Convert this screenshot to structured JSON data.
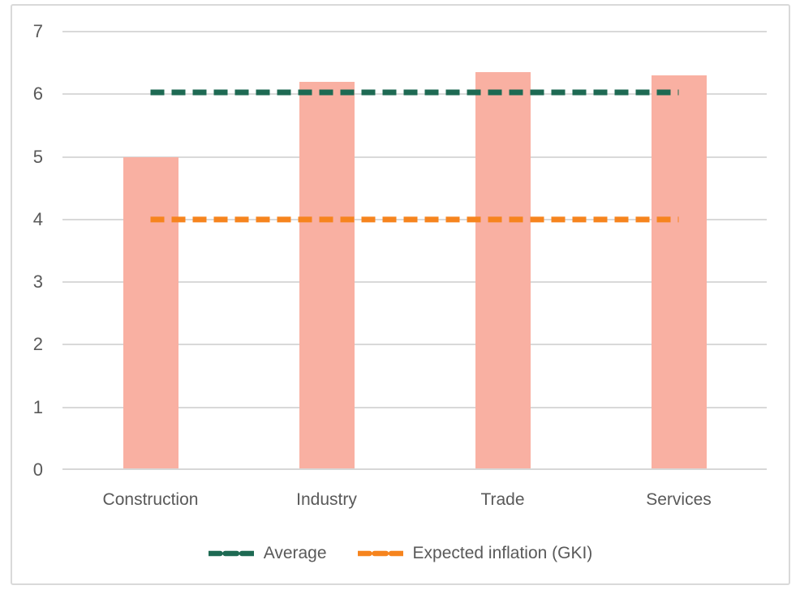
{
  "chart_data": {
    "type": "bar",
    "title": "",
    "categories": [
      "Construction",
      "Industry",
      "Trade",
      "Services"
    ],
    "series": [
      {
        "name": "",
        "type": "bar",
        "values": [
          5.0,
          6.2,
          6.35,
          6.3
        ],
        "color": "#F9B0A2"
      },
      {
        "name": "Average",
        "type": "line",
        "style": "dashed",
        "values": [
          6.03,
          6.03,
          6.03,
          6.03
        ],
        "color": "#1E6A53"
      },
      {
        "name": "Expected inflation (GKI)",
        "type": "line",
        "style": "dashed",
        "values": [
          4.0,
          4.0,
          4.0,
          4.0
        ],
        "color": "#F6841E"
      }
    ],
    "xlabel": "",
    "ylabel": "",
    "ylim": [
      0,
      7
    ],
    "yticks": [
      0,
      1,
      2,
      3,
      4,
      5,
      6,
      7
    ],
    "grid": true,
    "legend_position": "bottom",
    "legend_entries": [
      "Average",
      "Expected inflation (GKI)"
    ]
  },
  "styling": {
    "bar_color": "#F9B0A2",
    "average_line_color": "#1E6A53",
    "expected_inflation_line_color": "#F6841E",
    "grid_color": "#D9D9D9",
    "axis_color": "#D7D7D7",
    "text_color": "#595959",
    "frame_border_color": "#D9D9D9",
    "background_color": "#FFFFFF"
  }
}
